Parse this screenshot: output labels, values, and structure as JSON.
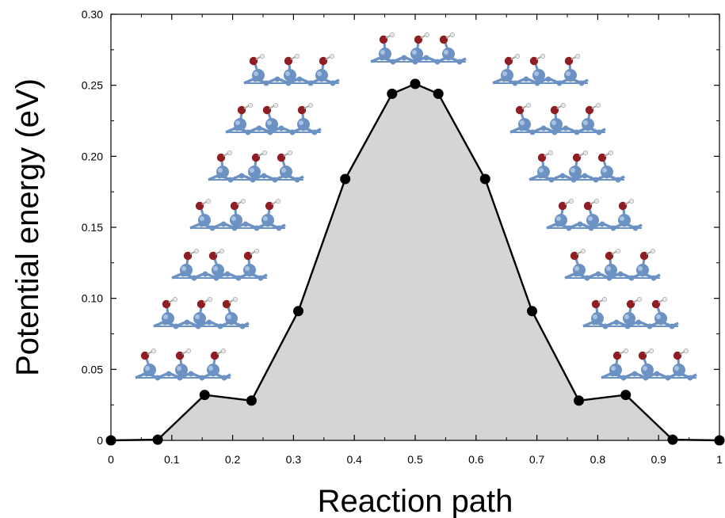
{
  "chart_data": {
    "type": "area",
    "title": "",
    "xlabel": "Reaction path",
    "ylabel": "Potential energy (eV)",
    "xlim": [
      0,
      1
    ],
    "ylim": [
      0,
      0.3
    ],
    "grid": false,
    "legend": "none",
    "x_ticks": [
      0,
      0.1,
      0.2,
      0.3,
      0.4,
      0.5,
      0.6,
      0.7,
      0.8,
      0.9,
      1
    ],
    "x_tick_labels": [
      "0",
      "0.1",
      "0.2",
      "0.3",
      "0.4",
      "0.5",
      "0.6",
      "0.7",
      "0.8",
      "0.9",
      "1"
    ],
    "y_ticks": [
      0,
      0.05,
      0.1,
      0.15,
      0.2,
      0.25,
      0.3
    ],
    "y_tick_labels": [
      "0",
      "0.05",
      "0.10",
      "0.15",
      "0.20",
      "0.25",
      "0.30"
    ],
    "series": [
      {
        "x": [
          0,
          0.077,
          0.154,
          0.231,
          0.308,
          0.385,
          0.462,
          0.5,
          0.538,
          0.615,
          0.692,
          0.769,
          0.846,
          0.923,
          1
        ],
        "y": [
          0,
          0.0005,
          0.032,
          0.028,
          0.091,
          0.184,
          0.244,
          0.251,
          0.244,
          0.184,
          0.091,
          0.028,
          0.032,
          0.0005,
          0
        ],
        "color": "#000000",
        "fill": "#d4d5d7"
      }
    ],
    "molecule_insets": 15
  },
  "colors": {
    "fill": "#d4d5d7",
    "line": "#000000",
    "slab_atom": "#6c92c4",
    "oxygen_atom": "#8f1d22",
    "hydrogen_atom": "#e8e8e8"
  }
}
